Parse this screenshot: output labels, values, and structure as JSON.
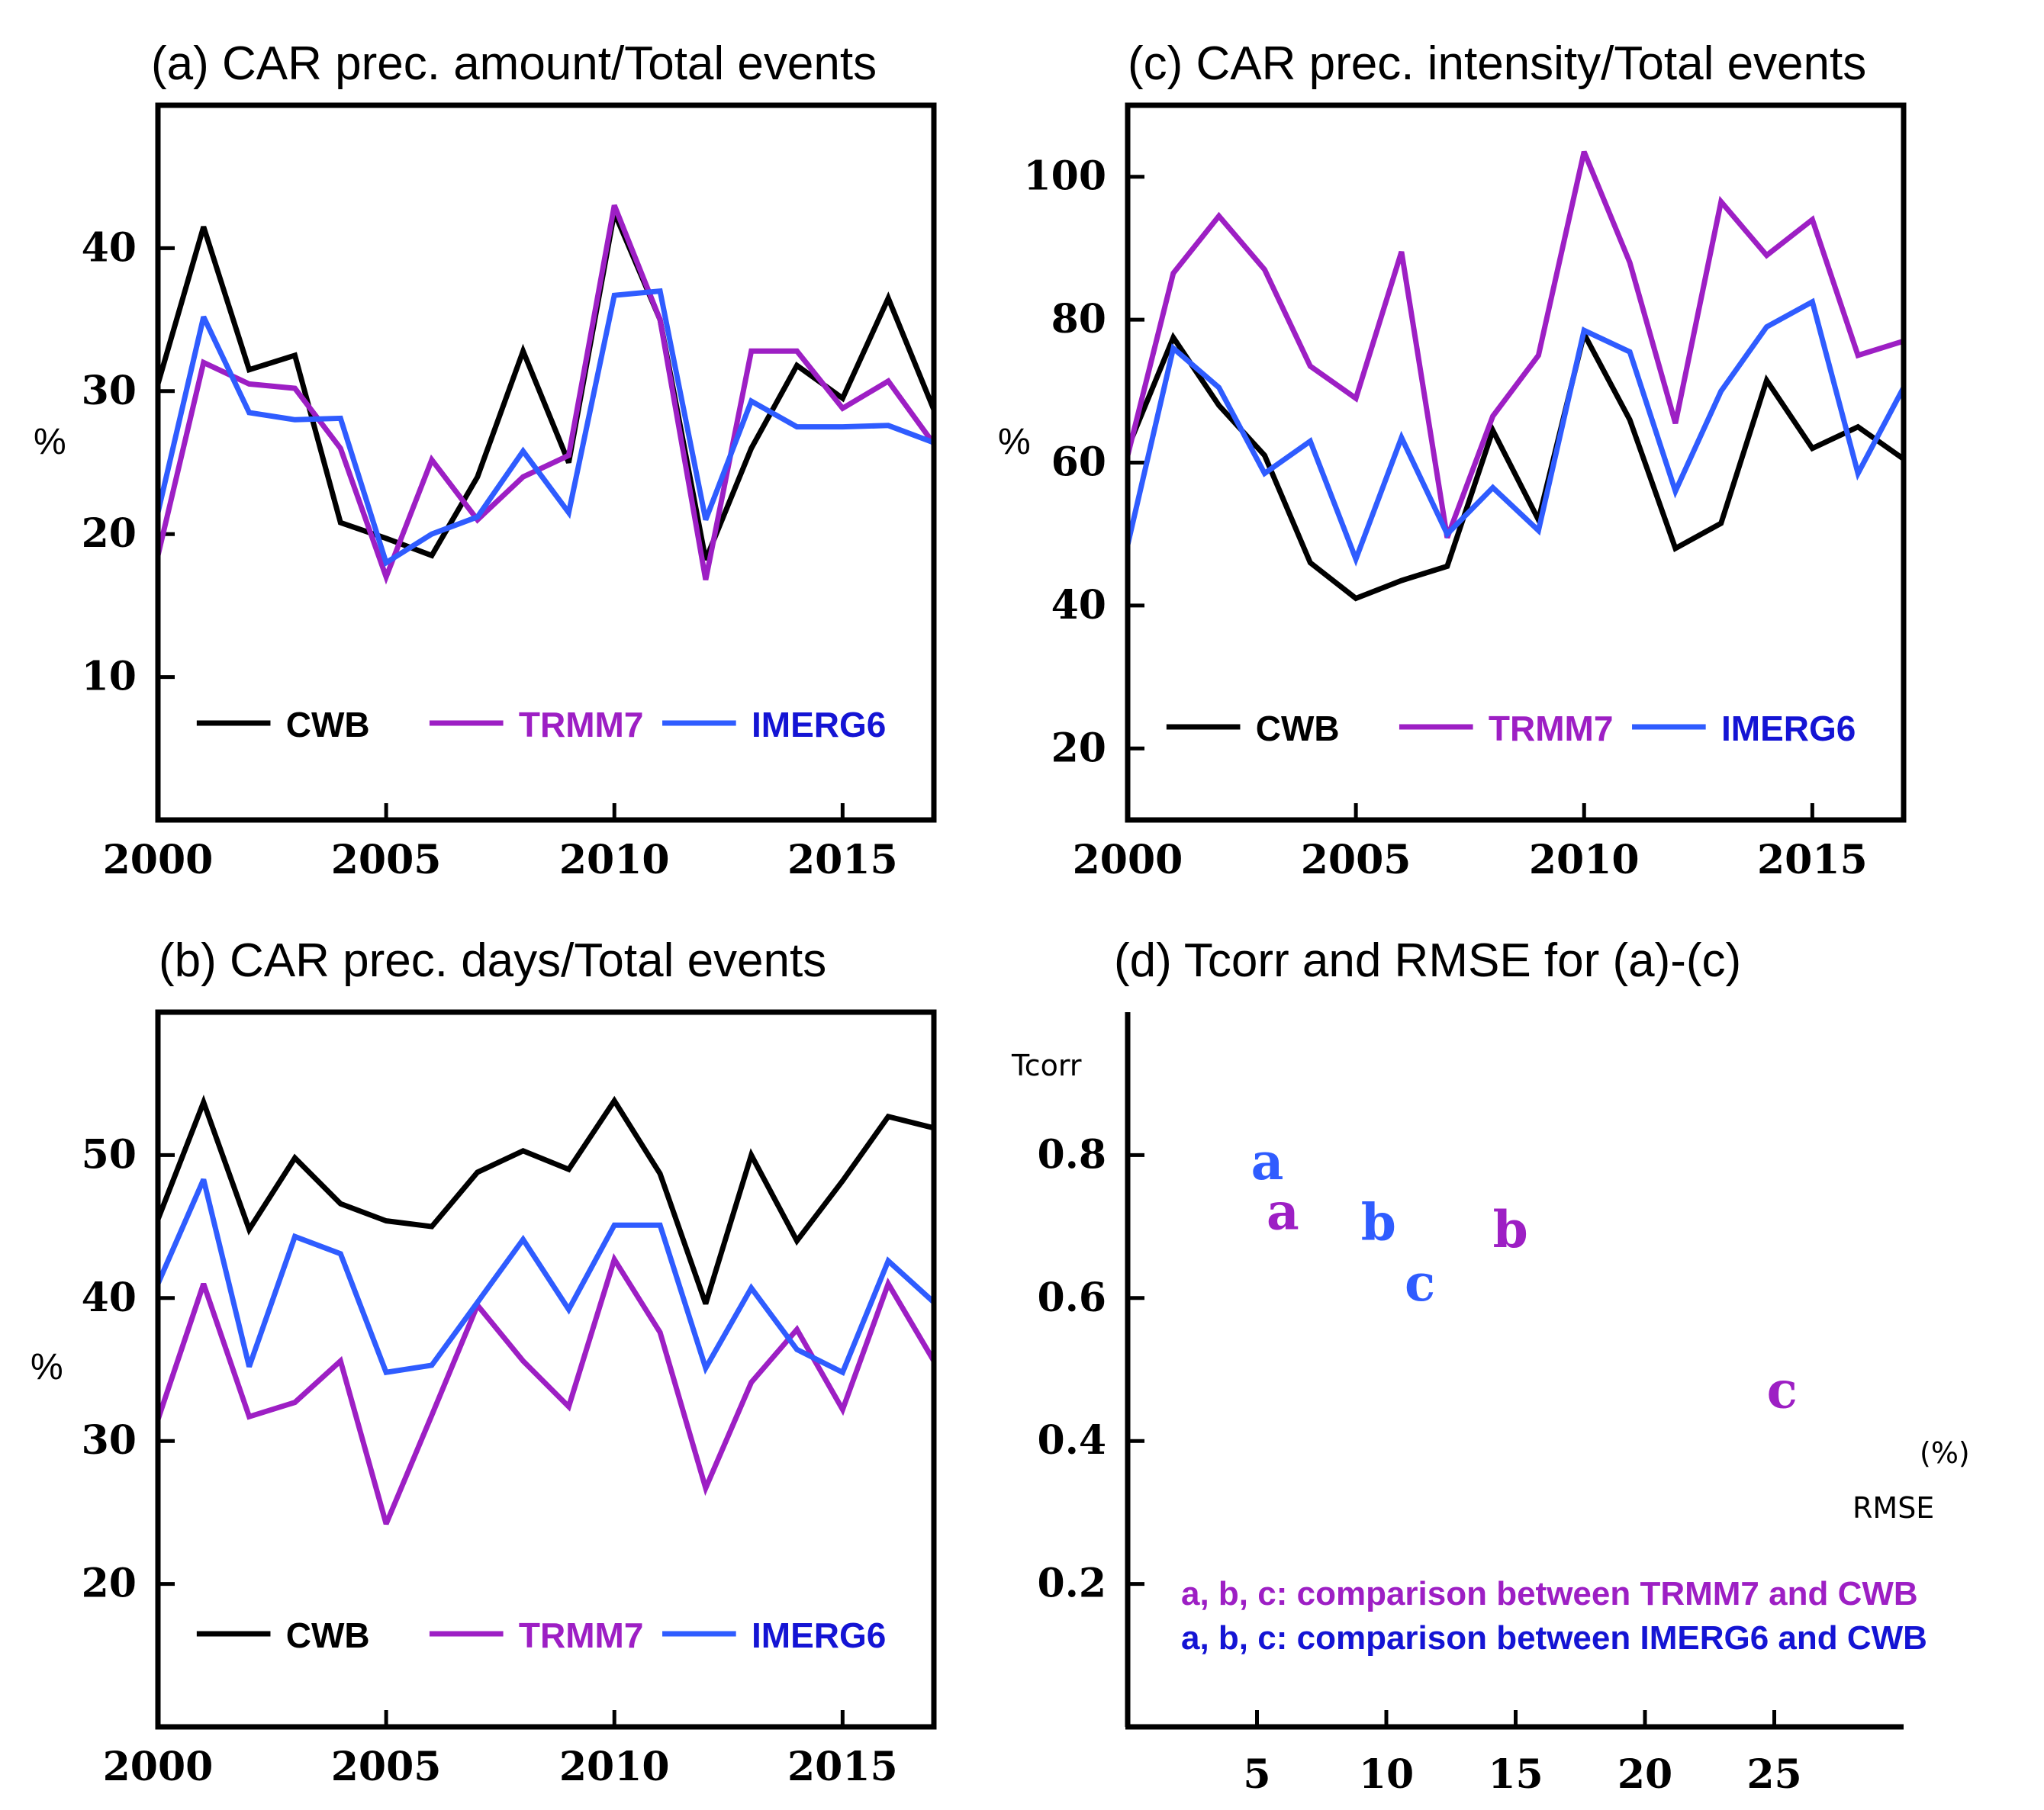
{
  "colors": {
    "CWB": "#000000",
    "TRMM7": "#9d1fc4",
    "IMERG6": "#2f5cff",
    "IMERG6_text": "#1414d4"
  },
  "chart_data": [
    {
      "id": "a",
      "type": "line",
      "title": "(a) CAR prec. amount/Total events",
      "ylabel": "%",
      "xlabel": "",
      "xlim": [
        2000,
        2017
      ],
      "ylim": [
        0,
        50
      ],
      "xticks": [
        2000,
        2005,
        2010,
        2015
      ],
      "yticks": [
        10,
        20,
        30,
        40
      ],
      "legend": [
        "CWB",
        "TRMM7",
        "IMERG6"
      ],
      "x": [
        2000,
        2001,
        2002,
        2003,
        2004,
        2005,
        2006,
        2007,
        2008,
        2009,
        2010,
        2011,
        2012,
        2013,
        2014,
        2015,
        2016,
        2017
      ],
      "series": [
        {
          "name": "CWB",
          "values": [
            30.5,
            41.5,
            31.5,
            32.5,
            20.8,
            19.7,
            18.5,
            24,
            32.8,
            25,
            42.5,
            35,
            18.2,
            26,
            31.8,
            29.5,
            36.5,
            28.7
          ]
        },
        {
          "name": "TRMM7",
          "values": [
            18.5,
            32,
            30.5,
            30.2,
            26,
            17,
            25.2,
            21,
            24,
            25.5,
            43,
            35,
            16.8,
            32.8,
            32.8,
            28.8,
            30.7,
            26.3
          ]
        },
        {
          "name": "IMERG6",
          "values": [
            21.5,
            35.2,
            28.5,
            28,
            28.1,
            18,
            20,
            21.2,
            25.8,
            21.5,
            36.7,
            37,
            21,
            29.3,
            27.5,
            27.5,
            27.6,
            26.4
          ]
        }
      ]
    },
    {
      "id": "c",
      "type": "line",
      "title": "(c) CAR prec. intensity/Total events",
      "ylabel": "%",
      "xlabel": "",
      "xlim": [
        2000,
        2017
      ],
      "ylim": [
        10,
        110
      ],
      "xticks": [
        2000,
        2005,
        2010,
        2015
      ],
      "yticks": [
        20,
        40,
        60,
        80,
        100
      ],
      "legend": [
        "CWB",
        "TRMM7",
        "IMERG6"
      ],
      "x": [
        2000,
        2001,
        2002,
        2003,
        2004,
        2005,
        2006,
        2007,
        2008,
        2009,
        2010,
        2011,
        2012,
        2013,
        2014,
        2015,
        2016,
        2017
      ],
      "series": [
        {
          "name": "CWB",
          "values": [
            62,
            77.5,
            68,
            61,
            46,
            41,
            43.5,
            45.5,
            64.5,
            52,
            78,
            66,
            48,
            51.5,
            71.5,
            62,
            65,
            60.5
          ]
        },
        {
          "name": "TRMM7",
          "values": [
            61,
            86.5,
            94.5,
            87,
            73.5,
            69,
            89.5,
            49.5,
            66.5,
            75,
            103.5,
            88,
            65.5,
            96.5,
            89,
            94,
            75,
            77
          ]
        },
        {
          "name": "IMERG6",
          "values": [
            48.5,
            76,
            70.5,
            58.5,
            63,
            46.5,
            63.5,
            50,
            56.5,
            50.5,
            78.5,
            75.5,
            56,
            70,
            79,
            82.5,
            58.5,
            70.5
          ]
        }
      ]
    },
    {
      "id": "b",
      "type": "line",
      "title": "(b) CAR prec. days/Total events",
      "ylabel": "%",
      "xlabel": "",
      "xlim": [
        2000,
        2017
      ],
      "ylim": [
        10,
        60
      ],
      "xticks": [
        2000,
        2005,
        2010,
        2015
      ],
      "yticks": [
        20,
        30,
        40,
        50
      ],
      "legend": [
        "CWB",
        "TRMM7",
        "IMERG6"
      ],
      "x": [
        2000,
        2001,
        2002,
        2003,
        2004,
        2005,
        2006,
        2007,
        2008,
        2009,
        2010,
        2011,
        2012,
        2013,
        2014,
        2015,
        2016,
        2017
      ],
      "series": [
        {
          "name": "CWB",
          "values": [
            45.5,
            53.7,
            44.8,
            49.8,
            46.6,
            45.4,
            45,
            48.8,
            50.3,
            49,
            53.8,
            48.7,
            39.6,
            50,
            44,
            48.2,
            52.7,
            51.9
          ]
        },
        {
          "name": "TRMM7",
          "values": [
            31.5,
            41,
            31.7,
            32.7,
            35.6,
            24.2,
            31.8,
            39.5,
            35.6,
            32.4,
            42.7,
            37.6,
            26.7,
            34.1,
            37.8,
            32.2,
            41,
            35.6
          ]
        },
        {
          "name": "IMERG6",
          "values": [
            41,
            48.3,
            35.2,
            44.3,
            43.1,
            34.8,
            35.3,
            39.7,
            44.1,
            39.2,
            45.1,
            45.1,
            35.1,
            40.7,
            36.4,
            34.8,
            42.6,
            39.7
          ]
        }
      ]
    },
    {
      "id": "d",
      "type": "scatter",
      "title": "(d) Tcorr and RMSE for (a)-(c)",
      "xlabel": "RMSE",
      "x_unit": "(%)",
      "ylabel": "Tcorr",
      "xlim": [
        0,
        30
      ],
      "ylim": [
        0,
        1
      ],
      "xticks": [
        5,
        10,
        15,
        20,
        25
      ],
      "yticks": [
        0.2,
        0.4,
        0.6,
        0.8
      ],
      "notes": [
        {
          "series": "TRMM7",
          "text": "a, b, c: comparison between TRMM7 and CWB"
        },
        {
          "series": "IMERG6",
          "text": "a, b, c: comparison between IMERG6 and CWB"
        }
      ],
      "series": [
        {
          "name": "TRMM7",
          "points": [
            {
              "label": "a",
              "x": 6,
              "y": 0.72
            },
            {
              "label": "b",
              "x": 14.8,
              "y": 0.695
            },
            {
              "label": "c",
              "x": 25.3,
              "y": 0.47
            }
          ]
        },
        {
          "name": "IMERG6",
          "points": [
            {
              "label": "a",
              "x": 5.4,
              "y": 0.79
            },
            {
              "label": "b",
              "x": 9.7,
              "y": 0.705
            },
            {
              "label": "c",
              "x": 11.3,
              "y": 0.62
            }
          ]
        }
      ]
    }
  ]
}
